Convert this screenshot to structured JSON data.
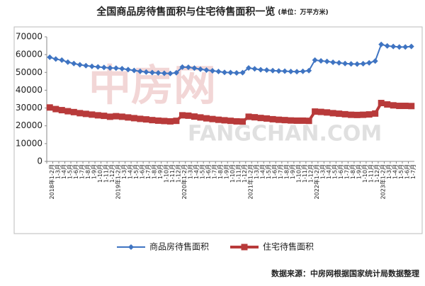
{
  "chart_data": {
    "type": "line",
    "title": "全国商品房待售面积与住宅待售面积一览",
    "unit": "(单位：万平方米)",
    "source": "数据来源：中房网根据国家统计局数据整理",
    "watermark": [
      "中房网",
      "FANGCHAN.COM"
    ],
    "categories": [
      "2018年1-2月",
      "1-3月",
      "1-4月",
      "1-5月",
      "1-6月",
      "1-7月",
      "1-8月",
      "1-9月",
      "1-10月",
      "1-11月",
      "1-12月",
      "2019年1-2月",
      "1-3月",
      "1-4月",
      "1-5月",
      "1-6月",
      "1-7月",
      "1-8月",
      "1-9月",
      "1-10月",
      "1-11月",
      "1-12月",
      "2020年1-2月",
      "1-3月",
      "1-4月",
      "1-5月",
      "1-6月",
      "1-7月",
      "1-8月",
      "1-9月",
      "1-10月",
      "1-11月",
      "1-12月",
      "2021年1-2月",
      "1-3月",
      "1-4月",
      "1-5月",
      "1-6月",
      "1-7月",
      "1-8月",
      "1-9月",
      "1-10月",
      "1-11月",
      "1-12月",
      "2022年1-2月",
      "1-3月",
      "1-4月",
      "1-5月",
      "1-6月",
      "1-7月",
      "1-8月",
      "1-9月",
      "1-10月",
      "1-11月",
      "1-12月",
      "2023年1-2月",
      "1-3月",
      "1-4月",
      "1-5月",
      "1-6月",
      "1-7月"
    ],
    "series": [
      {
        "name": "商品房待售面积",
        "color": "#3f74c2",
        "marker": "diamond",
        "values": [
          58500,
          57500,
          56900,
          55800,
          55000,
          54300,
          53800,
          53400,
          53100,
          52800,
          52500,
          52400,
          52100,
          51600,
          51100,
          50600,
          50200,
          49900,
          49700,
          49500,
          49400,
          49800,
          53000,
          52900,
          52400,
          51800,
          51300,
          50900,
          50500,
          50000,
          49900,
          49700,
          49850,
          52500,
          52000,
          51500,
          51300,
          51000,
          50800,
          50700,
          50500,
          50400,
          50600,
          51000,
          56900,
          56500,
          56200,
          55700,
          55400,
          55000,
          54800,
          54700,
          54900,
          55400,
          56400,
          65700,
          64900,
          64600,
          64300,
          64300,
          64600
        ]
      },
      {
        "name": "住宅待售面积",
        "color": "#b83a3a",
        "marker": "square",
        "values": [
          30300,
          29400,
          28800,
          28200,
          27700,
          27100,
          26700,
          26300,
          25900,
          25600,
          25100,
          25400,
          25100,
          24700,
          24300,
          23900,
          23600,
          23200,
          22900,
          22700,
          22500,
          22800,
          25900,
          25700,
          25200,
          24700,
          24200,
          23800,
          23400,
          23100,
          22800,
          22500,
          22400,
          25100,
          24800,
          24400,
          24100,
          23700,
          23400,
          23200,
          23000,
          22900,
          22900,
          22800,
          28000,
          27800,
          27500,
          27100,
          26800,
          26500,
          26200,
          26100,
          26200,
          26400,
          26900,
          32800,
          32000,
          31500,
          31200,
          31200,
          31100
        ]
      }
    ],
    "ylim": [
      0,
      70000
    ],
    "yticks": [
      0,
      10000,
      20000,
      30000,
      40000,
      50000,
      60000,
      70000
    ],
    "grid": false
  }
}
